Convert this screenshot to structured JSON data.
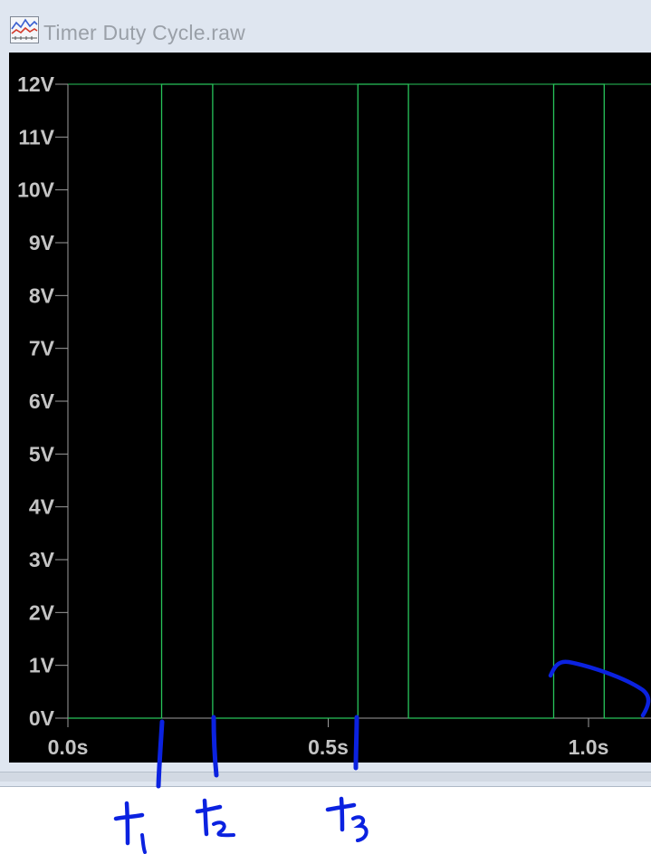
{
  "window": {
    "title": "Timer Duty Cycle.raw",
    "icon": "waveform-viewer-icon"
  },
  "colors": {
    "plot_background": "#000000",
    "trace": "#27c45a",
    "axis": "#9e9e9e",
    "tick_text": "#c4c4c4",
    "ink": "#0b22e0"
  },
  "chart_data": {
    "type": "line",
    "title": "",
    "xlabel": "",
    "ylabel": "",
    "xlim": [
      0.0,
      1.1
    ],
    "ylim": [
      0,
      12
    ],
    "grid": false,
    "x_ticks": [
      "0.0s",
      "0.5s",
      "1.0s"
    ],
    "x_tick_values": [
      0.0,
      0.5,
      1.0
    ],
    "y_ticks": [
      "0V",
      "1V",
      "2V",
      "3V",
      "4V",
      "5V",
      "6V",
      "7V",
      "8V",
      "9V",
      "10V",
      "11V",
      "12V"
    ],
    "y_tick_values": [
      0,
      1,
      2,
      3,
      4,
      5,
      6,
      7,
      8,
      9,
      10,
      11,
      12
    ],
    "series": [
      {
        "x": [
          0.0,
          0.18,
          0.18,
          0.278,
          0.278,
          0.557,
          0.557,
          0.654,
          0.654,
          0.933,
          0.933,
          1.03,
          1.03,
          1.1
        ],
        "y": [
          0,
          0,
          12,
          12,
          0,
          0,
          12,
          12,
          0,
          0,
          12,
          12,
          0,
          0
        ]
      }
    ]
  },
  "annotations": {
    "handwritten_marks": [
      "t1",
      "t2",
      "t3"
    ]
  }
}
